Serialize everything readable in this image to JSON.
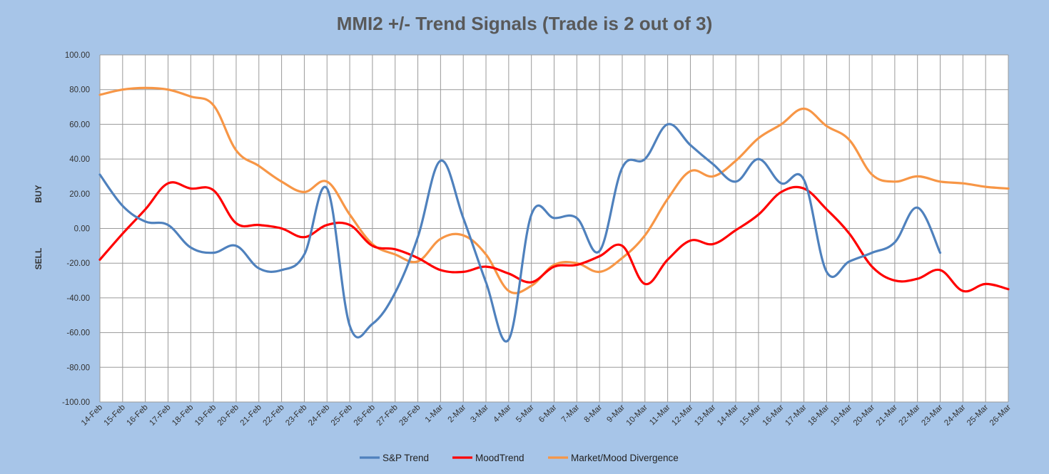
{
  "chart_data": {
    "type": "line",
    "title": "MMI2 +/- Trend Signals (Trade is 2 out of 3)",
    "side_labels": {
      "buy": "BUY",
      "sell": "SELL"
    },
    "ylim": [
      -100,
      100
    ],
    "yticks": [
      "100.00",
      "80.00",
      "60.00",
      "40.00",
      "20.00",
      "0.00",
      "-20.00",
      "-40.00",
      "-60.00",
      "-80.00",
      "-100.00"
    ],
    "ytick_values": [
      100,
      80,
      60,
      40,
      20,
      0,
      -20,
      -40,
      -60,
      -80,
      -100
    ],
    "categories": [
      "14-Feb",
      "15-Feb",
      "16-Feb",
      "17-Feb",
      "18-Feb",
      "19-Feb",
      "20-Feb",
      "21-Feb",
      "22-Feb",
      "23-Feb",
      "24-Feb",
      "25-Feb",
      "26-Feb",
      "27-Feb",
      "28-Feb",
      "1-Mar",
      "2-Mar",
      "3-Mar",
      "4-Mar",
      "5-Mar",
      "6-Mar",
      "7-Mar",
      "8-Mar",
      "9-Mar",
      "10-Mar",
      "11-Mar",
      "12-Mar",
      "13-Mar",
      "14-Mar",
      "15-Mar",
      "16-Mar",
      "17-Mar",
      "18-Mar",
      "19-Mar",
      "20-Mar",
      "21-Mar",
      "22-Mar",
      "23-Mar",
      "24-Mar",
      "25-Mar",
      "26-Mar"
    ],
    "grid": true,
    "legend_position": "bottom",
    "series": [
      {
        "name": "S&P Trend",
        "color": "#4f81bd",
        "values": [
          31,
          13,
          4,
          2,
          -11,
          -14,
          -10,
          -23,
          -24,
          -15,
          23,
          -56,
          -55,
          -37,
          -5,
          39,
          6,
          -31,
          -64,
          8,
          6,
          6,
          -13,
          35,
          40,
          60,
          48,
          37,
          27,
          40,
          26,
          28,
          -25,
          -19,
          -14,
          -8,
          12,
          -14,
          null,
          null,
          null
        ]
      },
      {
        "name": "MoodTrend",
        "color": "#ff0000",
        "values": [
          -18,
          -3,
          11,
          26,
          23,
          22,
          3,
          2,
          0,
          -5,
          2,
          2,
          -10,
          -12,
          -17,
          -24,
          -25,
          -22,
          -26,
          -31,
          -22,
          -21,
          -16,
          -10,
          -32,
          -18,
          -7,
          -9,
          -1,
          8,
          21,
          23,
          11,
          -3,
          -22,
          -30,
          -29,
          -24,
          -36,
          -32,
          -35
        ]
      },
      {
        "name": "Market/Mood Divergence",
        "color": "#f79646",
        "values": [
          77,
          80,
          81,
          80,
          76,
          71,
          45,
          36,
          27,
          21,
          27,
          8,
          -9,
          -15,
          -19,
          -6,
          -4,
          -15,
          -36,
          -33,
          -21,
          -20,
          -25,
          -17,
          -4,
          17,
          33,
          30,
          39,
          52,
          60,
          69,
          59,
          51,
          31,
          27,
          30,
          27,
          26,
          24,
          23
        ]
      }
    ]
  }
}
